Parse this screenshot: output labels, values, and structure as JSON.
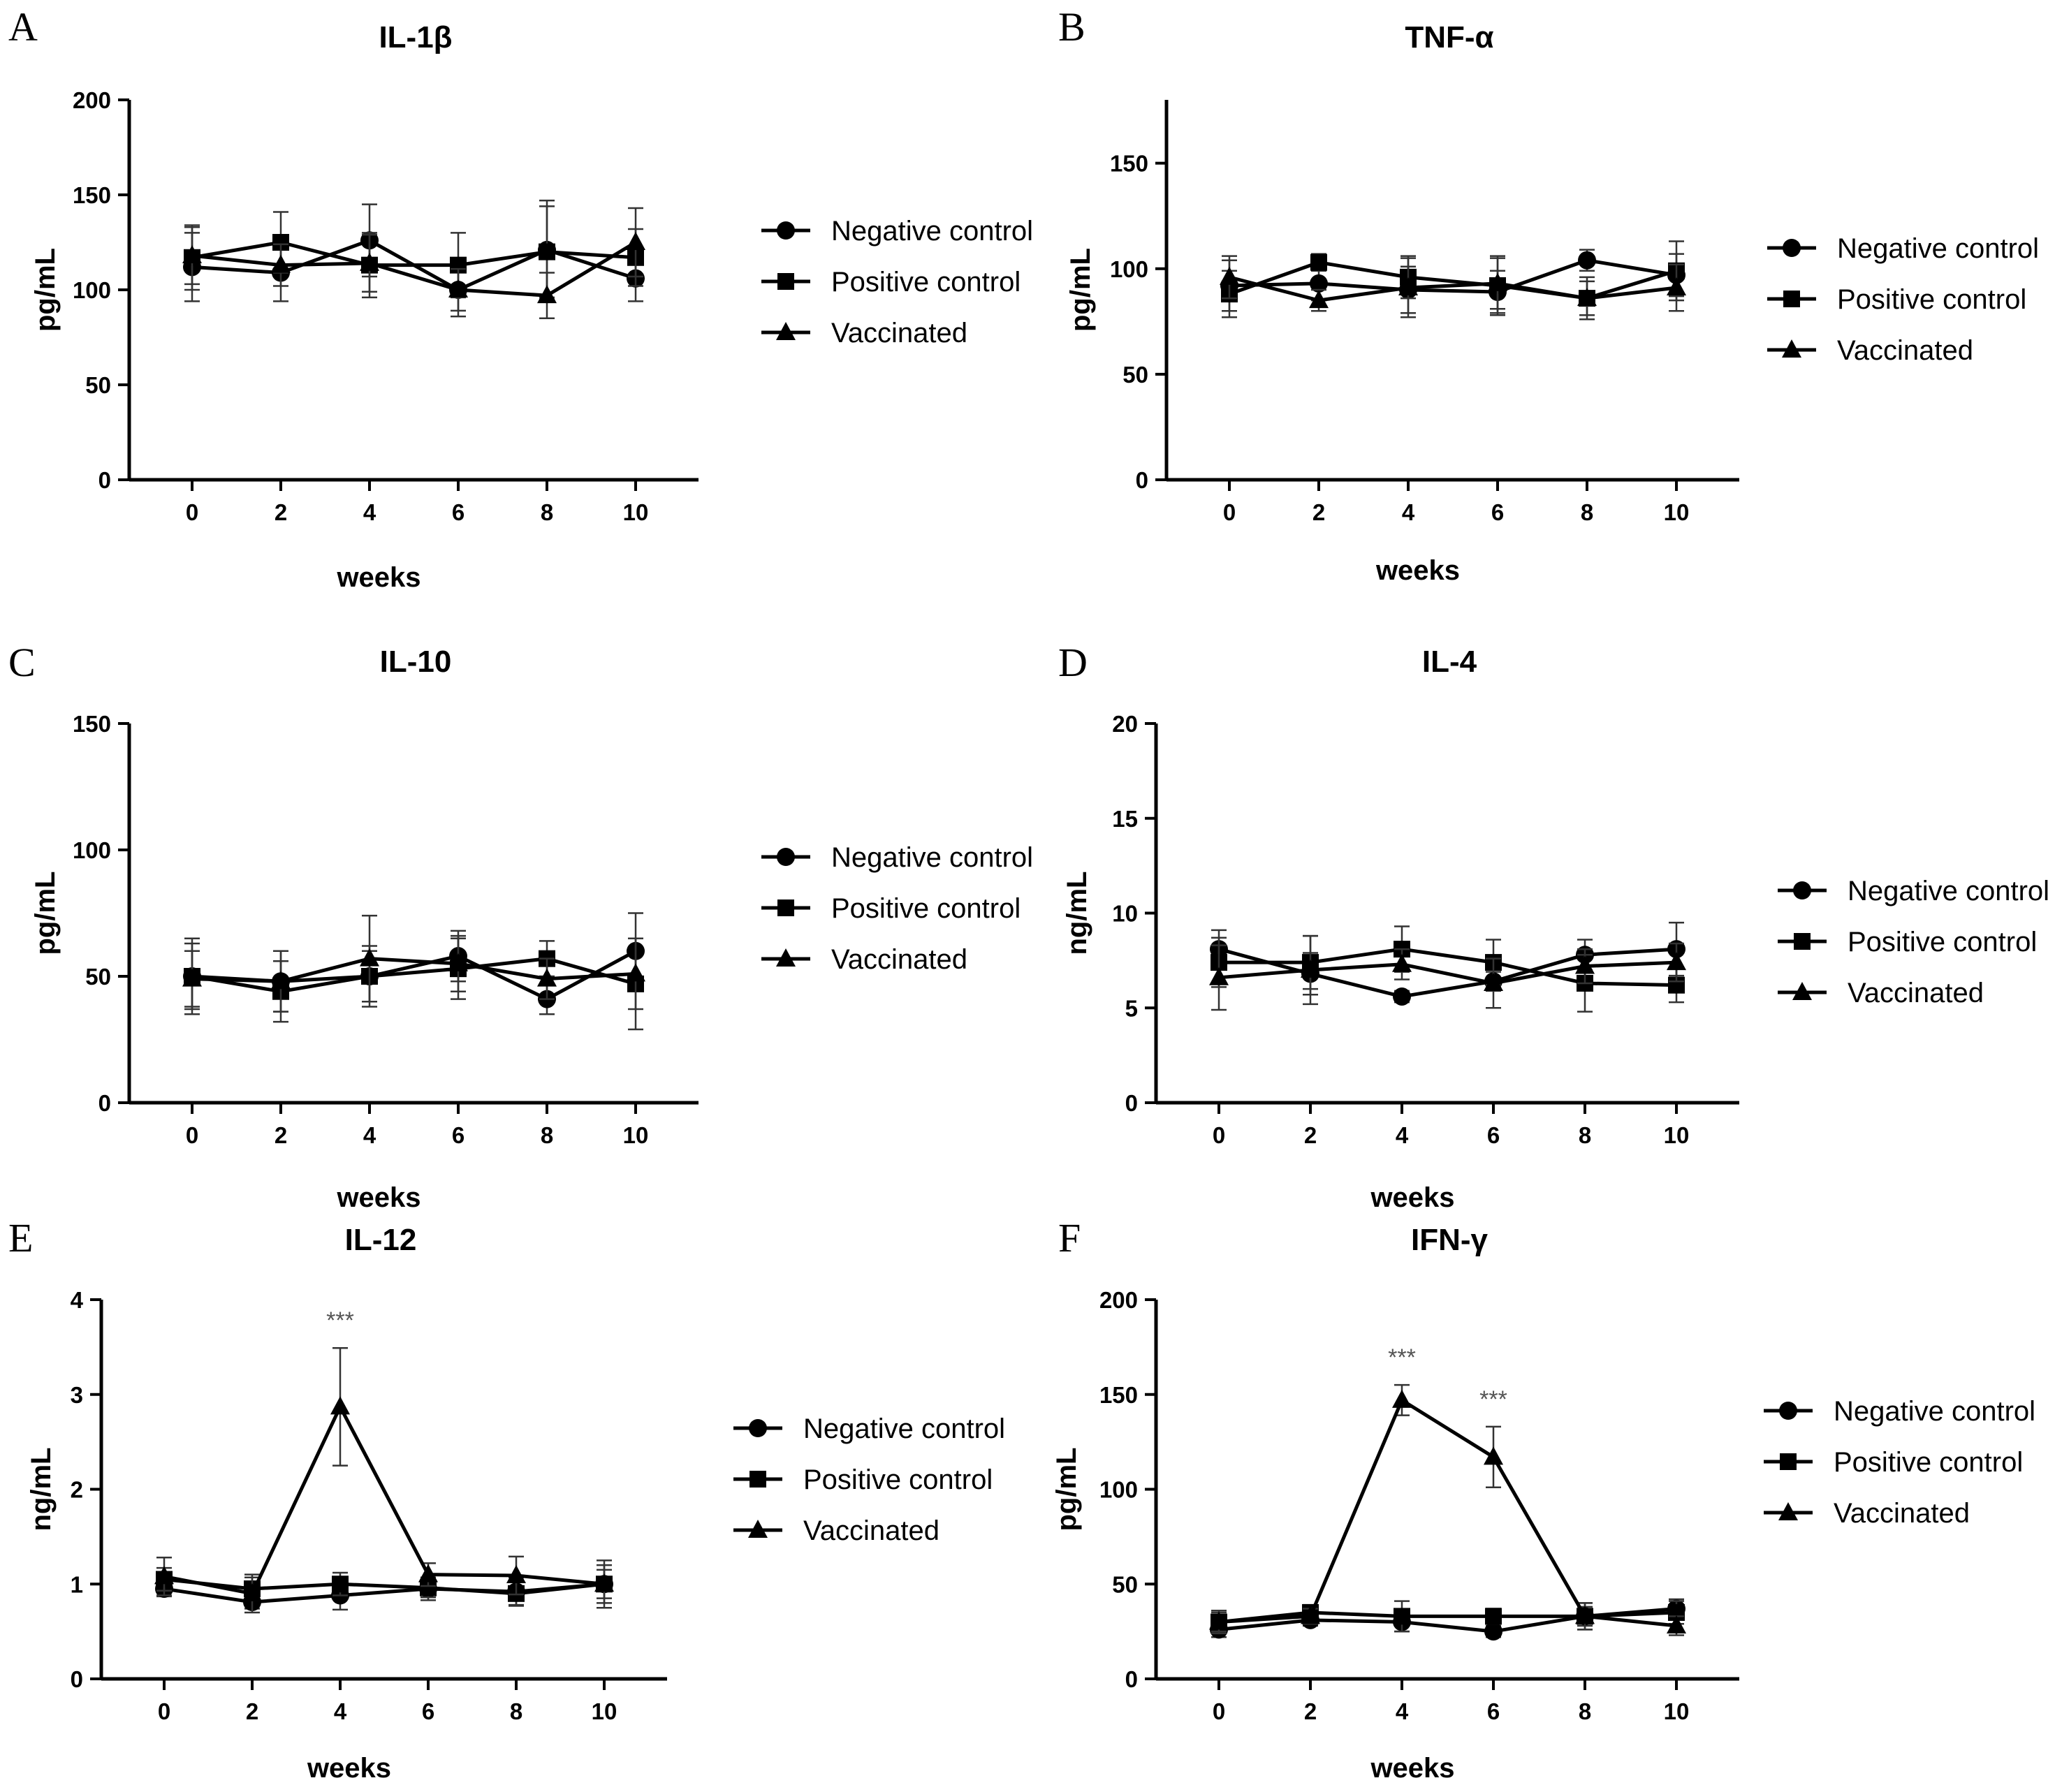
{
  "chart_data": [
    {
      "type": "line",
      "panel": "A",
      "title": "IL-1β",
      "xlabel": "weeks",
      "ylabel": "pg/mL",
      "x": [
        0,
        2,
        4,
        6,
        8,
        10
      ],
      "ylim": [
        0,
        200
      ],
      "yticks": [
        0,
        50,
        100,
        150,
        200
      ],
      "series": [
        {
          "name": "Negative control",
          "marker": "circle",
          "values": [
            112,
            109,
            126,
            100,
            121,
            106
          ],
          "errors": [
            18,
            15,
            19,
            14,
            26,
            12
          ]
        },
        {
          "name": "Positive control",
          "marker": "square",
          "values": [
            117,
            125,
            113,
            113,
            120,
            117
          ],
          "errors": [
            17,
            16,
            17,
            17,
            24,
            15
          ]
        },
        {
          "name": "Vaccinated",
          "marker": "triangle",
          "values": [
            118,
            113,
            114,
            100,
            97,
            125
          ],
          "errors": [
            15,
            11,
            15,
            11,
            12,
            18
          ]
        }
      ],
      "legend": "right"
    },
    {
      "type": "line",
      "panel": "B",
      "title": "TNF-α",
      "xlabel": "weeks",
      "ylabel": "pg/mL",
      "x": [
        0,
        2,
        4,
        6,
        8,
        10
      ],
      "ylim": [
        0,
        180
      ],
      "yticks": [
        0,
        50,
        100,
        150
      ],
      "series": [
        {
          "name": "Negative control",
          "marker": "circle",
          "values": [
            92,
            93,
            90,
            89,
            104,
            97
          ],
          "errors": [
            12,
            8,
            11,
            10,
            5,
            10
          ]
        },
        {
          "name": "Positive control",
          "marker": "square",
          "values": [
            88,
            103,
            96,
            92,
            86,
            99
          ],
          "errors": [
            11,
            4,
            10,
            14,
            8,
            14
          ]
        },
        {
          "name": "Vaccinated",
          "marker": "triangle",
          "values": [
            96,
            85,
            91,
            93,
            86,
            91
          ],
          "errors": [
            10,
            5,
            14,
            12,
            10,
            11
          ]
        }
      ],
      "legend": "right"
    },
    {
      "type": "line",
      "panel": "C",
      "title": "IL-10",
      "xlabel": "weeks",
      "ylabel": "pg/mL",
      "x": [
        0,
        2,
        4,
        6,
        8,
        10
      ],
      "ylim": [
        0,
        150
      ],
      "yticks": [
        0,
        50,
        100,
        150
      ],
      "series": [
        {
          "name": "Negative control",
          "marker": "circle",
          "values": [
            50,
            48,
            50,
            58,
            41,
            60
          ],
          "errors": [
            13,
            12,
            10,
            10,
            6,
            15
          ]
        },
        {
          "name": "Positive control",
          "marker": "square",
          "values": [
            50,
            44,
            50,
            53,
            57,
            47
          ],
          "errors": [
            15,
            12,
            12,
            12,
            7,
            18
          ]
        },
        {
          "name": "Vaccinated",
          "marker": "triangle",
          "values": [
            49,
            48,
            57,
            55,
            49,
            51
          ],
          "errors": [
            11,
            12,
            17,
            11,
            8,
            14
          ]
        }
      ],
      "legend": "right"
    },
    {
      "type": "line",
      "panel": "D",
      "title": "IL-4",
      "xlabel": "weeks",
      "ylabel": "ng/mL",
      "x": [
        0,
        2,
        4,
        6,
        8,
        10
      ],
      "ylim": [
        0,
        20
      ],
      "yticks": [
        0,
        5,
        10,
        15,
        20
      ],
      "series": [
        {
          "name": "Negative control",
          "marker": "circle",
          "values": [
            8.1,
            6.8,
            5.6,
            6.4,
            7.8,
            8.1
          ],
          "errors": [
            1.0,
            1.1,
            0.3,
            0.5,
            0.8,
            1.4
          ]
        },
        {
          "name": "Positive control",
          "marker": "square",
          "values": [
            7.4,
            7.4,
            8.1,
            7.4,
            6.3,
            6.2
          ],
          "errors": [
            1.3,
            1.4,
            1.2,
            1.2,
            1.5,
            0.9
          ]
        },
        {
          "name": "Vaccinated",
          "marker": "triangle",
          "values": [
            6.6,
            7.0,
            7.3,
            6.3,
            7.2,
            7.4
          ],
          "errors": [
            1.7,
            1.8,
            0.8,
            1.3,
            0.9,
            1.0
          ]
        }
      ],
      "legend": "right"
    },
    {
      "type": "line",
      "panel": "E",
      "title": "IL-12",
      "xlabel": "weeks",
      "ylabel": "ng/mL",
      "x": [
        0,
        2,
        4,
        6,
        8,
        10
      ],
      "ylim": [
        0,
        4
      ],
      "yticks": [
        0,
        1,
        2,
        3,
        4
      ],
      "series": [
        {
          "name": "Negative control",
          "marker": "circle",
          "values": [
            0.95,
            0.81,
            0.88,
            0.95,
            0.92,
            1.0
          ],
          "errors": [
            0.08,
            0.07,
            0.15,
            0.12,
            0.15,
            0.2
          ]
        },
        {
          "name": "Positive control",
          "marker": "square",
          "values": [
            1.05,
            0.95,
            1.0,
            0.96,
            0.9,
            1.0
          ],
          "errors": [
            0.12,
            0.12,
            0.12,
            0.1,
            0.12,
            0.15
          ]
        },
        {
          "name": "Vaccinated",
          "marker": "triangle",
          "values": [
            1.08,
            0.9,
            2.87,
            1.1,
            1.09,
            1.0
          ],
          "errors": [
            0.2,
            0.2,
            0.62,
            0.12,
            0.2,
            0.25
          ]
        }
      ],
      "annotations": [
        {
          "x": 4,
          "text": "***"
        }
      ],
      "legend": "right"
    },
    {
      "type": "line",
      "panel": "F",
      "title": "IFN-γ",
      "xlabel": "weeks",
      "ylabel": "pg/mL",
      "x": [
        0,
        2,
        4,
        6,
        8,
        10
      ],
      "ylim": [
        0,
        200
      ],
      "yticks": [
        0,
        50,
        100,
        150,
        200
      ],
      "series": [
        {
          "name": "Negative control",
          "marker": "circle",
          "values": [
            26,
            31,
            30,
            25,
            33,
            37
          ],
          "errors": [
            4,
            3,
            5,
            3,
            5,
            5
          ]
        },
        {
          "name": "Positive control",
          "marker": "square",
          "values": [
            30,
            35,
            33,
            33,
            33,
            35
          ],
          "errors": [
            6,
            4,
            8,
            4,
            7,
            6
          ]
        },
        {
          "name": "Vaccinated",
          "marker": "triangle",
          "values": [
            30,
            33,
            147,
            117,
            33,
            28
          ],
          "errors": [
            5,
            4,
            8,
            16,
            7,
            5
          ]
        }
      ],
      "annotations": [
        {
          "x": 4,
          "text": "***"
        },
        {
          "x": 6,
          "text": "***"
        }
      ],
      "legend": "right"
    }
  ]
}
